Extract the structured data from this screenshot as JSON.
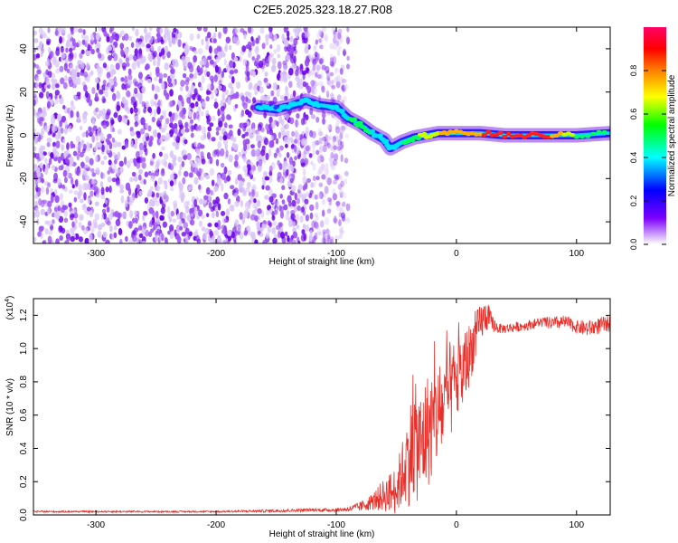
{
  "title": "C2E5.2025.323.18.27.R08",
  "chart_data": [
    {
      "type": "heatmap",
      "name": "spectrogram",
      "xlabel": "Height of straight line (km)",
      "ylabel": "Frequency (Hz)",
      "xlim": [
        -352,
        128
      ],
      "ylim": [
        -50,
        50
      ],
      "xticks": [
        -300,
        -200,
        -100,
        0,
        100
      ],
      "yticks": [
        -40,
        -20,
        0,
        20,
        40
      ],
      "xtick_labels": [
        "-300",
        "-200",
        "-100",
        "0",
        "100"
      ],
      "ytick_labels": [
        "-40",
        "-20",
        "0",
        "20",
        "40"
      ],
      "noise_region_x": [
        -352,
        -90
      ],
      "signal_track": {
        "x": [
          -165,
          -150,
          -135,
          -125,
          -115,
          -100,
          -90,
          -80,
          -70,
          -60,
          -55,
          -45,
          -35,
          -25,
          -15,
          0,
          20,
          40,
          60,
          80,
          100,
          128
        ],
        "freq": [
          13,
          12,
          14,
          16,
          14,
          13,
          8,
          5,
          1,
          -2,
          -6,
          -3,
          -1,
          0,
          1,
          1,
          1,
          0,
          0,
          0,
          0,
          1
        ],
        "amplitude": [
          0.45,
          0.4,
          0.45,
          0.45,
          0.45,
          0.45,
          0.5,
          0.55,
          0.5,
          0.45,
          0.45,
          0.5,
          0.55,
          0.65,
          0.7,
          0.75,
          0.8,
          0.85,
          0.85,
          0.8,
          0.6,
          0.55
        ]
      },
      "colorbar": {
        "label": "Normalized spectral amplitude",
        "range": [
          0.0,
          1.0
        ],
        "ticks": [
          0.0,
          0.2,
          0.4,
          0.6,
          0.8
        ],
        "tick_labels": [
          "0.0",
          "0.2",
          "0.4",
          "0.6",
          "0.8"
        ],
        "colors": [
          "#ffffff",
          "#7d00ff",
          "#0000ff",
          "#00ffff",
          "#00ff00",
          "#ffff00",
          "#ff8000",
          "#ff0000",
          "#ff0066"
        ]
      }
    },
    {
      "type": "line",
      "name": "snr",
      "xlabel": "Height of straight line (km)",
      "ylabel": "SNR (10 * v/v)",
      "multiplier_label": "(x10",
      "multiplier_exp": "4",
      "multiplier_close": ")",
      "xlim": [
        -352,
        128
      ],
      "ylim": [
        0,
        1.3
      ],
      "xticks": [
        -300,
        -200,
        -100,
        0,
        100
      ],
      "yticks": [
        0.0,
        0.2,
        0.4,
        0.6,
        0.8,
        1.0,
        1.2
      ],
      "xtick_labels": [
        "-300",
        "-200",
        "-100",
        "0",
        "100"
      ],
      "ytick_labels": [
        "0.0",
        "0.2",
        "0.4",
        "0.6",
        "0.8",
        "1.0",
        "1.2"
      ],
      "color": "#e8302b",
      "series": [
        {
          "name": "SNR",
          "x": [
            -352,
            -300,
            -250,
            -200,
            -150,
            -120,
            -100,
            -90,
            -80,
            -70,
            -60,
            -50,
            -45,
            -40,
            -35,
            -30,
            -25,
            -20,
            -15,
            -10,
            -5,
            0,
            5,
            10,
            15,
            20,
            25,
            30,
            35,
            40,
            50,
            60,
            70,
            80,
            90,
            100,
            110,
            120,
            128
          ],
          "y": [
            0.02,
            0.02,
            0.02,
            0.02,
            0.025,
            0.03,
            0.03,
            0.035,
            0.05,
            0.08,
            0.12,
            0.15,
            0.25,
            0.35,
            0.45,
            0.4,
            0.5,
            0.55,
            0.6,
            0.65,
            0.75,
            0.8,
            0.85,
            0.95,
            1.05,
            1.15,
            1.2,
            1.15,
            1.12,
            1.12,
            1.13,
            1.14,
            1.16,
            1.15,
            1.16,
            1.13,
            1.12,
            1.14,
            1.15
          ],
          "noise": [
            0.005,
            0.005,
            0.005,
            0.005,
            0.01,
            0.01,
            0.01,
            0.015,
            0.03,
            0.05,
            0.1,
            0.15,
            0.2,
            0.3,
            0.35,
            0.35,
            0.35,
            0.35,
            0.3,
            0.3,
            0.3,
            0.25,
            0.25,
            0.2,
            0.15,
            0.12,
            0.1,
            0.05,
            0.03,
            0.03,
            0.03,
            0.03,
            0.03,
            0.04,
            0.04,
            0.04,
            0.05,
            0.05,
            0.05
          ]
        }
      ]
    }
  ]
}
